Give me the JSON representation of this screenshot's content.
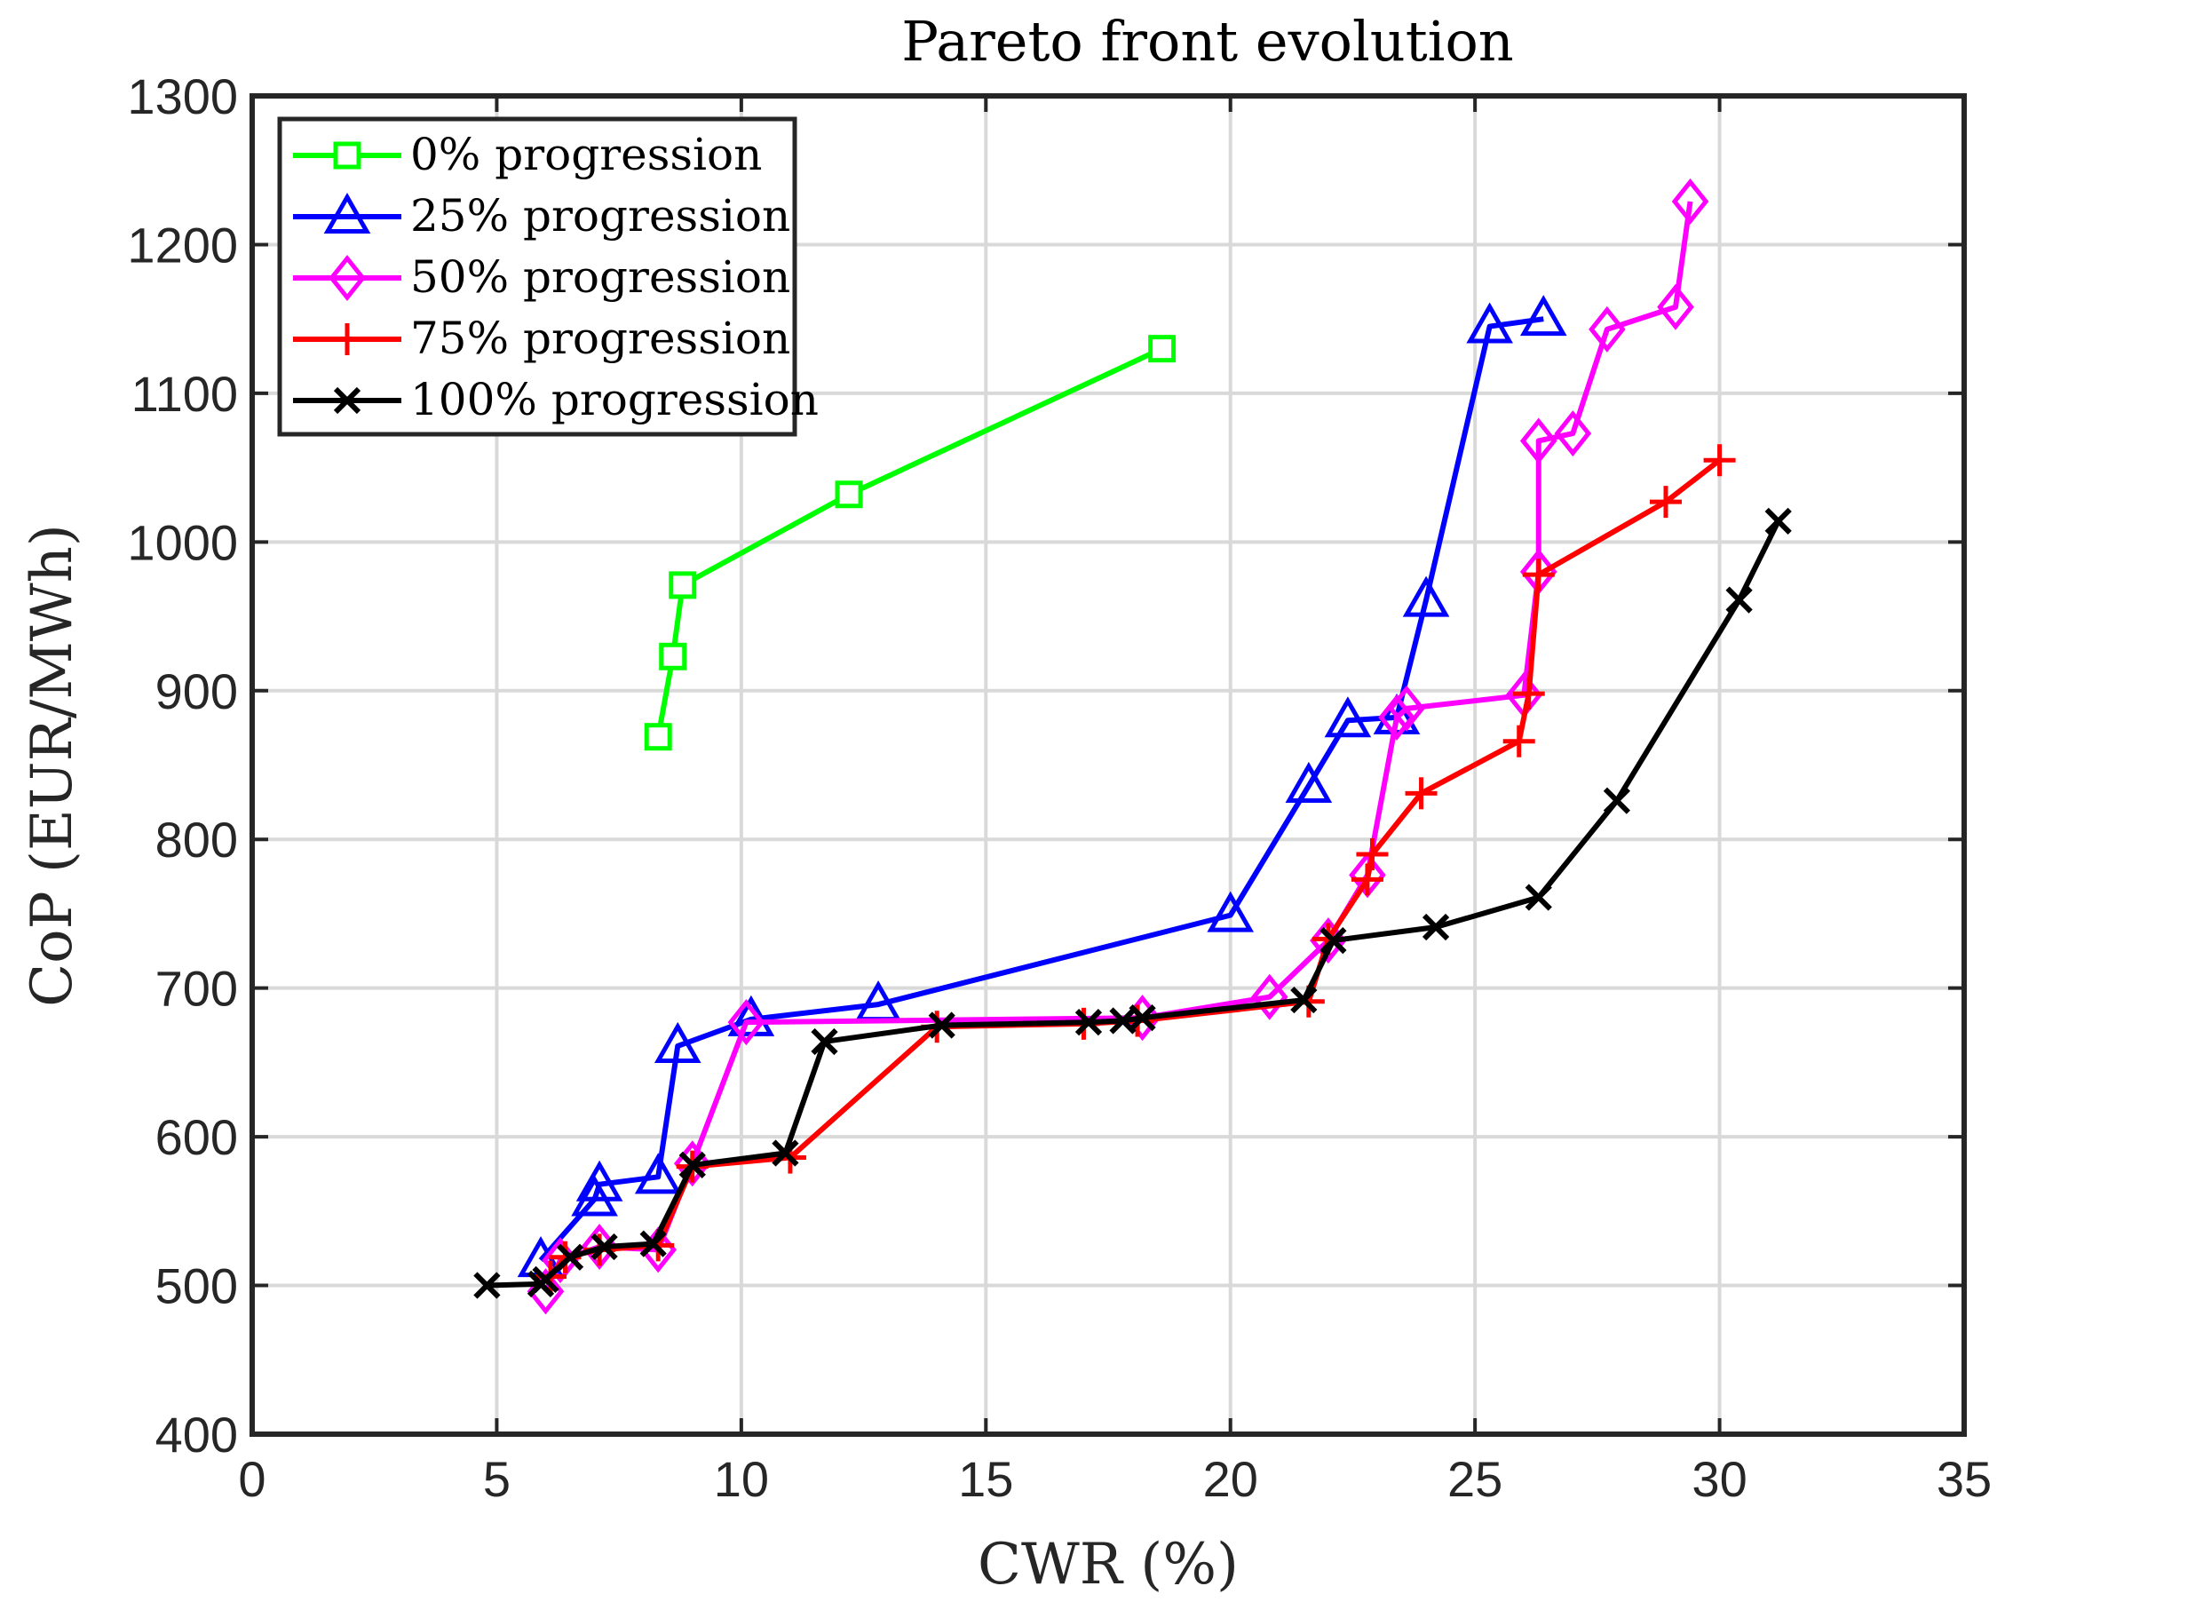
{
  "chart_data": {
    "type": "line",
    "title": "Pareto front evolution",
    "xlabel": "CWR (%)",
    "ylabel": "CoP (EUR/MWh)",
    "xlim": [
      0,
      35
    ],
    "ylim": [
      400,
      1300
    ],
    "xticks": [
      0,
      5,
      10,
      15,
      20,
      25,
      30,
      35
    ],
    "yticks": [
      400,
      500,
      600,
      700,
      800,
      900,
      1000,
      1100,
      1200,
      1300
    ],
    "grid": true,
    "legend_position": "top-left",
    "series": [
      {
        "name": "0% progression",
        "color": "#00ff00",
        "marker": "square",
        "points": [
          [
            8.3,
            869
          ],
          [
            8.6,
            923
          ],
          [
            8.8,
            971
          ],
          [
            12.2,
            1032
          ],
          [
            18.6,
            1130
          ]
        ]
      },
      {
        "name": "25% progression",
        "color": "#0000ff",
        "marker": "triangle",
        "points": [
          [
            5.9,
            517
          ],
          [
            7.0,
            558
          ],
          [
            7.1,
            568
          ],
          [
            8.3,
            573
          ],
          [
            8.7,
            661
          ],
          [
            10.2,
            679
          ],
          [
            12.8,
            689
          ],
          [
            20.0,
            749
          ],
          [
            21.6,
            836
          ],
          [
            22.4,
            880
          ],
          [
            23.4,
            882
          ],
          [
            24.0,
            961
          ],
          [
            25.3,
            1145
          ],
          [
            26.4,
            1150
          ]
        ]
      },
      {
        "name": "50% progression",
        "color": "#ff00ff",
        "marker": "diamond",
        "points": [
          [
            6.0,
            496
          ],
          [
            6.3,
            517
          ],
          [
            7.1,
            526
          ],
          [
            8.3,
            524
          ],
          [
            9.0,
            582
          ],
          [
            10.1,
            677
          ],
          [
            18.2,
            680
          ],
          [
            20.8,
            694
          ],
          [
            22.0,
            732
          ],
          [
            22.8,
            776
          ],
          [
            23.4,
            882
          ],
          [
            23.6,
            888
          ],
          [
            26.0,
            897
          ],
          [
            26.3,
            980
          ],
          [
            26.3,
            1068
          ],
          [
            27.0,
            1073
          ],
          [
            27.7,
            1143
          ],
          [
            29.1,
            1158
          ],
          [
            29.4,
            1229
          ]
        ]
      },
      {
        "name": "75% progression",
        "color": "#ff0000",
        "marker": "plus",
        "points": [
          [
            6.1,
            506
          ],
          [
            6.4,
            519
          ],
          [
            7.1,
            524
          ],
          [
            8.3,
            527
          ],
          [
            9.0,
            580
          ],
          [
            11.0,
            586
          ],
          [
            14.0,
            674
          ],
          [
            17.0,
            676
          ],
          [
            18.1,
            678
          ],
          [
            21.6,
            691
          ],
          [
            22.0,
            733
          ],
          [
            22.8,
            773
          ],
          [
            22.9,
            790
          ],
          [
            23.9,
            831
          ],
          [
            25.9,
            866
          ],
          [
            26.1,
            898
          ],
          [
            26.3,
            978
          ],
          [
            28.9,
            1027
          ],
          [
            30.0,
            1055
          ]
        ]
      },
      {
        "name": "100% progression",
        "color": "#000000",
        "marker": "x",
        "points": [
          [
            4.8,
            500
          ],
          [
            5.9,
            501
          ],
          [
            6.0,
            504
          ],
          [
            6.5,
            519
          ],
          [
            7.2,
            526
          ],
          [
            8.2,
            528
          ],
          [
            9.0,
            581
          ],
          [
            10.9,
            589
          ],
          [
            11.7,
            664
          ],
          [
            14.1,
            675
          ],
          [
            17.1,
            677
          ],
          [
            17.8,
            678
          ],
          [
            18.2,
            680
          ],
          [
            21.5,
            692
          ],
          [
            22.1,
            732
          ],
          [
            24.2,
            741
          ],
          [
            26.3,
            761
          ],
          [
            27.9,
            826
          ],
          [
            30.4,
            961
          ],
          [
            31.2,
            1014
          ]
        ]
      }
    ]
  }
}
